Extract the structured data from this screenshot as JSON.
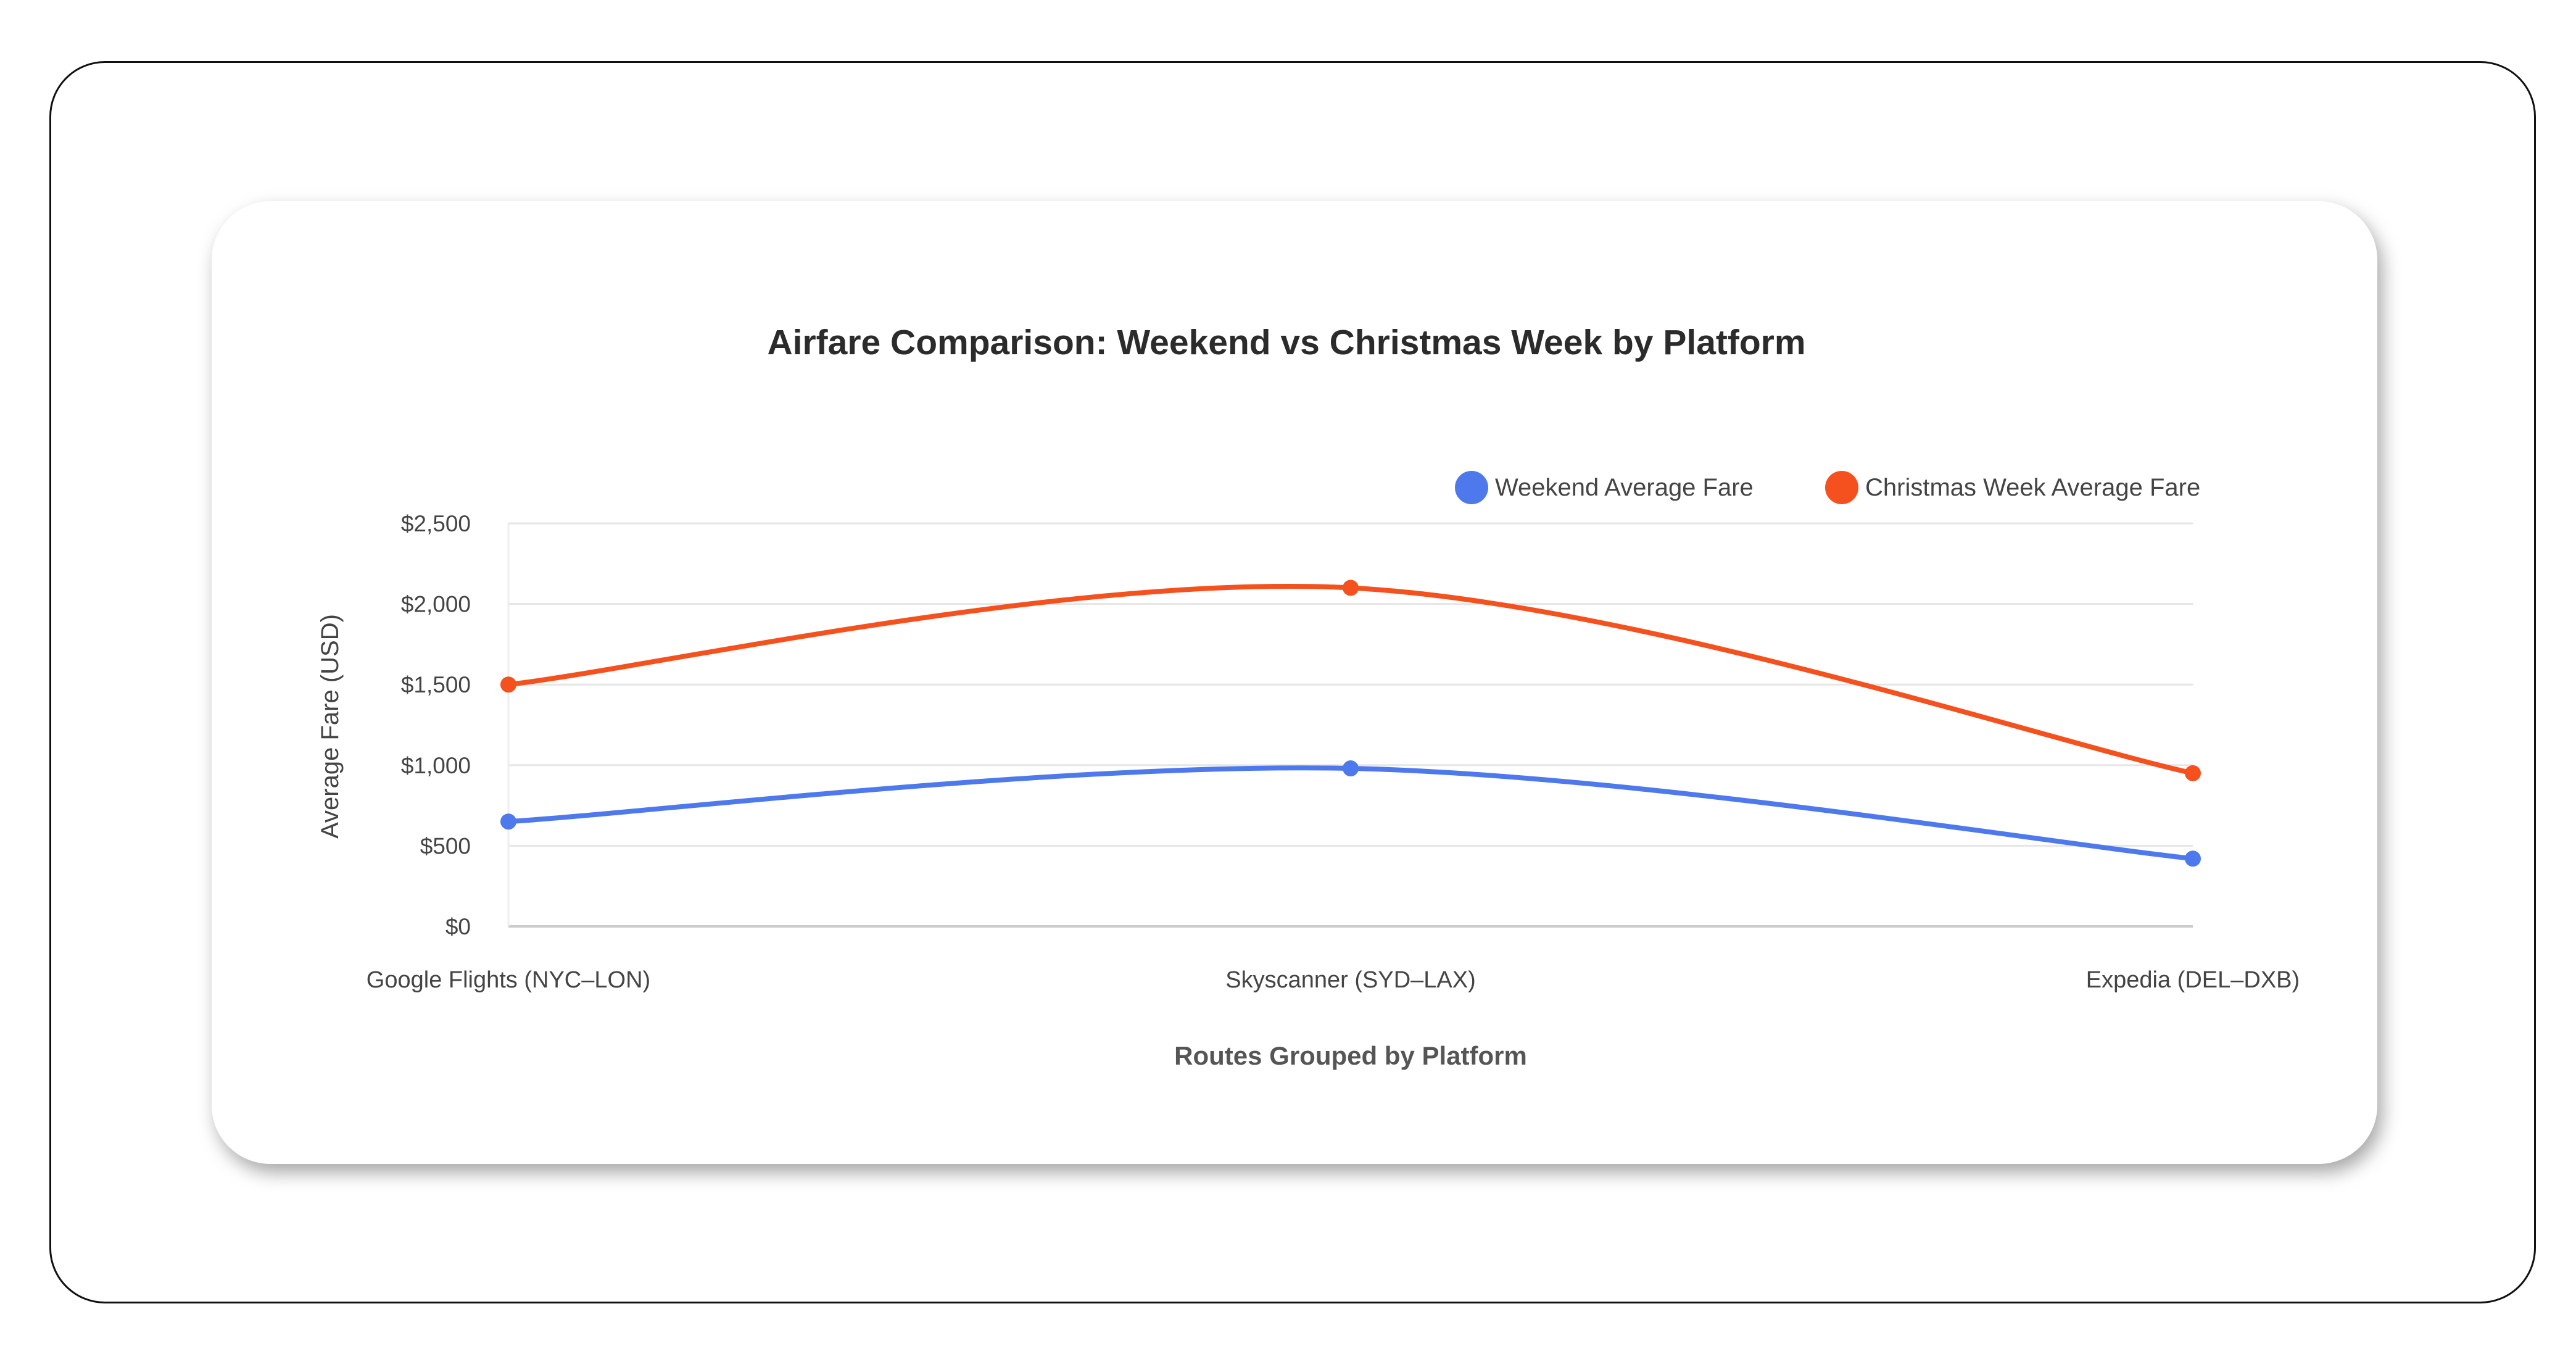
{
  "chart_data": {
    "type": "line",
    "title": "Airfare Comparison: Weekend vs Christmas Week by Platform",
    "xlabel": "Routes Grouped by Platform",
    "ylabel": "Average Fare (USD)",
    "categories": [
      "Google Flights (NYC–LON)",
      "Skyscanner (SYD–LAX)",
      "Expedia (DEL–DXB)"
    ],
    "ylim": [
      0,
      2500
    ],
    "yticks": [
      0,
      500,
      1000,
      1500,
      2000,
      2500
    ],
    "ytick_labels": [
      "$0",
      "$500",
      "$1,000",
      "$1,500",
      "$2,000",
      "$2,500"
    ],
    "grid": true,
    "legend_position": "top-right",
    "curve": "smooth",
    "series": [
      {
        "name": "Weekend Average Fare",
        "color": "#4e79ec",
        "values": [
          650,
          980,
          420
        ]
      },
      {
        "name": "Christmas Week Average Fare",
        "color": "#f4511e",
        "values": [
          1500,
          2100,
          950
        ]
      }
    ]
  }
}
